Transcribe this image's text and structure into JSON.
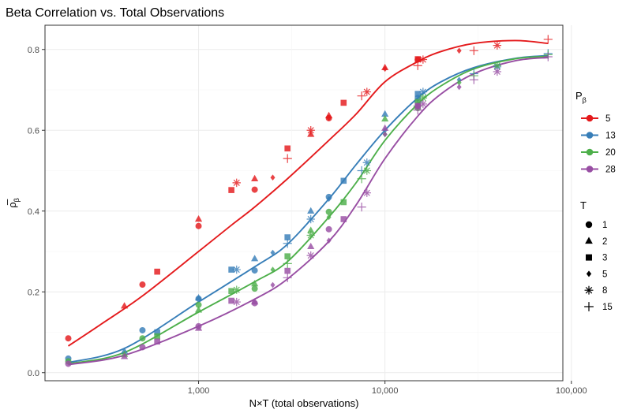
{
  "chart_data": {
    "type": "scatter",
    "title": "Beta Correlation vs. Total Observations",
    "xlabel": "N×T (total observations)",
    "ylabel_main": "ρ̅",
    "ylabel_sub": "β",
    "x_scale": "log10",
    "xlim": [
      150,
      90000
    ],
    "ylim": [
      -0.02,
      0.86
    ],
    "x_ticks": [
      1000,
      10000,
      100000
    ],
    "x_tick_labels": [
      "1,000",
      "10,000",
      "100,000"
    ],
    "y_ticks": [
      0.0,
      0.2,
      0.4,
      0.6,
      0.8
    ],
    "y_tick_labels": [
      "0.0",
      "0.2",
      "0.4",
      "0.6",
      "0.8"
    ],
    "grid": true,
    "legend_color": {
      "title_main": "P",
      "title_sub": "β",
      "placement": "right",
      "entries": [
        {
          "label": "5",
          "color": "#e41a1c"
        },
        {
          "label": "13",
          "color": "#377eb8"
        },
        {
          "label": "20",
          "color": "#4daf4a"
        },
        {
          "label": "28",
          "color": "#984ea3"
        }
      ]
    },
    "legend_shape": {
      "title": "T",
      "placement": "right",
      "entries": [
        {
          "label": "1",
          "shape": "circle"
        },
        {
          "label": "2",
          "shape": "triangle"
        },
        {
          "label": "3",
          "shape": "square"
        },
        {
          "label": "5",
          "shape": "diamond"
        },
        {
          "label": "8",
          "shape": "asterisk"
        },
        {
          "label": "15",
          "shape": "plus"
        }
      ]
    },
    "series": [
      {
        "name": "5",
        "color": "#e41a1c",
        "curve": [
          [
            200,
            0.066
          ],
          [
            300,
            0.12
          ],
          [
            500,
            0.19
          ],
          [
            1000,
            0.3
          ],
          [
            1500,
            0.365
          ],
          [
            2000,
            0.41
          ],
          [
            3000,
            0.48
          ],
          [
            5000,
            0.575
          ],
          [
            7000,
            0.64
          ],
          [
            10000,
            0.72
          ],
          [
            15000,
            0.77
          ],
          [
            20000,
            0.795
          ],
          [
            30000,
            0.815
          ],
          [
            50000,
            0.822
          ],
          [
            75000,
            0.815
          ]
        ],
        "points": [
          {
            "x": 200,
            "y": 0.085,
            "t": "1"
          },
          {
            "x": 500,
            "y": 0.218,
            "t": "1"
          },
          {
            "x": 1000,
            "y": 0.363,
            "t": "1"
          },
          {
            "x": 2000,
            "y": 0.453,
            "t": "1"
          },
          {
            "x": 5000,
            "y": 0.63,
            "t": "1"
          },
          {
            "x": 15000,
            "y": 0.775,
            "t": "1"
          },
          {
            "x": 400,
            "y": 0.165,
            "t": "2"
          },
          {
            "x": 1000,
            "y": 0.38,
            "t": "2"
          },
          {
            "x": 2000,
            "y": 0.48,
            "t": "2"
          },
          {
            "x": 4000,
            "y": 0.59,
            "t": "2"
          },
          {
            "x": 5000,
            "y": 0.636,
            "t": "2"
          },
          {
            "x": 10000,
            "y": 0.755,
            "t": "2"
          },
          {
            "x": 600,
            "y": 0.25,
            "t": "3"
          },
          {
            "x": 1500,
            "y": 0.452,
            "t": "3"
          },
          {
            "x": 3000,
            "y": 0.555,
            "t": "3"
          },
          {
            "x": 6000,
            "y": 0.668,
            "t": "3"
          },
          {
            "x": 15000,
            "y": 0.776,
            "t": "3"
          },
          {
            "x": 2500,
            "y": 0.483,
            "t": "5"
          },
          {
            "x": 5000,
            "y": 0.63,
            "t": "5"
          },
          {
            "x": 10000,
            "y": 0.752,
            "t": "5"
          },
          {
            "x": 25000,
            "y": 0.797,
            "t": "5"
          },
          {
            "x": 1600,
            "y": 0.47,
            "t": "8"
          },
          {
            "x": 4000,
            "y": 0.6,
            "t": "8"
          },
          {
            "x": 8000,
            "y": 0.695,
            "t": "8"
          },
          {
            "x": 16000,
            "y": 0.775,
            "t": "8"
          },
          {
            "x": 40000,
            "y": 0.81,
            "t": "8"
          },
          {
            "x": 3000,
            "y": 0.53,
            "t": "15"
          },
          {
            "x": 7500,
            "y": 0.685,
            "t": "15"
          },
          {
            "x": 15000,
            "y": 0.76,
            "t": "15"
          },
          {
            "x": 30000,
            "y": 0.797,
            "t": "15"
          },
          {
            "x": 75000,
            "y": 0.825,
            "t": "15"
          }
        ]
      },
      {
        "name": "13",
        "color": "#377eb8",
        "curve": [
          [
            200,
            0.025
          ],
          [
            400,
            0.06
          ],
          [
            1000,
            0.175
          ],
          [
            2000,
            0.262
          ],
          [
            3000,
            0.318
          ],
          [
            5000,
            0.43
          ],
          [
            7000,
            0.515
          ],
          [
            10000,
            0.6
          ],
          [
            15000,
            0.68
          ],
          [
            20000,
            0.72
          ],
          [
            30000,
            0.755
          ],
          [
            50000,
            0.778
          ],
          [
            75000,
            0.785
          ]
        ],
        "points": [
          {
            "x": 200,
            "y": 0.035,
            "t": "1"
          },
          {
            "x": 500,
            "y": 0.105,
            "t": "1"
          },
          {
            "x": 1000,
            "y": 0.183,
            "t": "1"
          },
          {
            "x": 2000,
            "y": 0.253,
            "t": "1"
          },
          {
            "x": 5000,
            "y": 0.435,
            "t": "1"
          },
          {
            "x": 15000,
            "y": 0.68,
            "t": "1"
          },
          {
            "x": 400,
            "y": 0.053,
            "t": "2"
          },
          {
            "x": 1000,
            "y": 0.185,
            "t": "2"
          },
          {
            "x": 2000,
            "y": 0.282,
            "t": "2"
          },
          {
            "x": 4000,
            "y": 0.4,
            "t": "2"
          },
          {
            "x": 10000,
            "y": 0.64,
            "t": "2"
          },
          {
            "x": 600,
            "y": 0.1,
            "t": "3"
          },
          {
            "x": 1500,
            "y": 0.255,
            "t": "3"
          },
          {
            "x": 3000,
            "y": 0.335,
            "t": "3"
          },
          {
            "x": 6000,
            "y": 0.475,
            "t": "3"
          },
          {
            "x": 15000,
            "y": 0.69,
            "t": "3"
          },
          {
            "x": 2500,
            "y": 0.297,
            "t": "5"
          },
          {
            "x": 5000,
            "y": 0.43,
            "t": "5"
          },
          {
            "x": 10000,
            "y": 0.6,
            "t": "5"
          },
          {
            "x": 25000,
            "y": 0.725,
            "t": "5"
          },
          {
            "x": 1600,
            "y": 0.255,
            "t": "8"
          },
          {
            "x": 4000,
            "y": 0.38,
            "t": "8"
          },
          {
            "x": 8000,
            "y": 0.52,
            "t": "8"
          },
          {
            "x": 16000,
            "y": 0.695,
            "t": "8"
          },
          {
            "x": 40000,
            "y": 0.757,
            "t": "8"
          },
          {
            "x": 3000,
            "y": 0.32,
            "t": "15"
          },
          {
            "x": 7500,
            "y": 0.5,
            "t": "15"
          },
          {
            "x": 15000,
            "y": 0.67,
            "t": "15"
          },
          {
            "x": 30000,
            "y": 0.74,
            "t": "15"
          },
          {
            "x": 75000,
            "y": 0.79,
            "t": "15"
          }
        ]
      },
      {
        "name": "20",
        "color": "#4daf4a",
        "curve": [
          [
            200,
            0.022
          ],
          [
            400,
            0.05
          ],
          [
            1000,
            0.15
          ],
          [
            2000,
            0.225
          ],
          [
            3000,
            0.275
          ],
          [
            5000,
            0.385
          ],
          [
            7000,
            0.47
          ],
          [
            10000,
            0.575
          ],
          [
            15000,
            0.665
          ],
          [
            20000,
            0.71
          ],
          [
            30000,
            0.752
          ],
          [
            50000,
            0.777
          ],
          [
            75000,
            0.783
          ]
        ],
        "points": [
          {
            "x": 200,
            "y": 0.028,
            "t": "1"
          },
          {
            "x": 500,
            "y": 0.085,
            "t": "1"
          },
          {
            "x": 1000,
            "y": 0.168,
            "t": "1"
          },
          {
            "x": 2000,
            "y": 0.208,
            "t": "1"
          },
          {
            "x": 5000,
            "y": 0.398,
            "t": "1"
          },
          {
            "x": 15000,
            "y": 0.655,
            "t": "1"
          },
          {
            "x": 400,
            "y": 0.045,
            "t": "2"
          },
          {
            "x": 1000,
            "y": 0.155,
            "t": "2"
          },
          {
            "x": 2000,
            "y": 0.22,
            "t": "2"
          },
          {
            "x": 4000,
            "y": 0.352,
            "t": "2"
          },
          {
            "x": 10000,
            "y": 0.628,
            "t": "2"
          },
          {
            "x": 600,
            "y": 0.09,
            "t": "3"
          },
          {
            "x": 1500,
            "y": 0.202,
            "t": "3"
          },
          {
            "x": 3000,
            "y": 0.288,
            "t": "3"
          },
          {
            "x": 6000,
            "y": 0.422,
            "t": "3"
          },
          {
            "x": 15000,
            "y": 0.67,
            "t": "3"
          },
          {
            "x": 2500,
            "y": 0.255,
            "t": "5"
          },
          {
            "x": 5000,
            "y": 0.385,
            "t": "5"
          },
          {
            "x": 10000,
            "y": 0.59,
            "t": "5"
          },
          {
            "x": 25000,
            "y": 0.718,
            "t": "5"
          },
          {
            "x": 1600,
            "y": 0.205,
            "t": "8"
          },
          {
            "x": 4000,
            "y": 0.34,
            "t": "8"
          },
          {
            "x": 8000,
            "y": 0.5,
            "t": "8"
          },
          {
            "x": 16000,
            "y": 0.68,
            "t": "8"
          },
          {
            "x": 40000,
            "y": 0.76,
            "t": "8"
          },
          {
            "x": 3000,
            "y": 0.27,
            "t": "15"
          },
          {
            "x": 7500,
            "y": 0.48,
            "t": "15"
          },
          {
            "x": 15000,
            "y": 0.66,
            "t": "15"
          },
          {
            "x": 30000,
            "y": 0.735,
            "t": "15"
          },
          {
            "x": 75000,
            "y": 0.787,
            "t": "15"
          }
        ]
      },
      {
        "name": "28",
        "color": "#984ea3",
        "curve": [
          [
            200,
            0.02
          ],
          [
            400,
            0.043
          ],
          [
            1000,
            0.115
          ],
          [
            2000,
            0.182
          ],
          [
            3000,
            0.232
          ],
          [
            5000,
            0.325
          ],
          [
            7000,
            0.415
          ],
          [
            10000,
            0.53
          ],
          [
            15000,
            0.635
          ],
          [
            20000,
            0.69
          ],
          [
            30000,
            0.74
          ],
          [
            50000,
            0.772
          ],
          [
            75000,
            0.78
          ]
        ],
        "points": [
          {
            "x": 200,
            "y": 0.022,
            "t": "1"
          },
          {
            "x": 500,
            "y": 0.063,
            "t": "1"
          },
          {
            "x": 1000,
            "y": 0.115,
            "t": "1"
          },
          {
            "x": 2000,
            "y": 0.172,
            "t": "1"
          },
          {
            "x": 5000,
            "y": 0.355,
            "t": "1"
          },
          {
            "x": 15000,
            "y": 0.66,
            "t": "1"
          },
          {
            "x": 400,
            "y": 0.04,
            "t": "2"
          },
          {
            "x": 1000,
            "y": 0.11,
            "t": "2"
          },
          {
            "x": 2000,
            "y": 0.175,
            "t": "2"
          },
          {
            "x": 4000,
            "y": 0.312,
            "t": "2"
          },
          {
            "x": 10000,
            "y": 0.605,
            "t": "2"
          },
          {
            "x": 600,
            "y": 0.077,
            "t": "3"
          },
          {
            "x": 1500,
            "y": 0.178,
            "t": "3"
          },
          {
            "x": 3000,
            "y": 0.252,
            "t": "3"
          },
          {
            "x": 6000,
            "y": 0.38,
            "t": "3"
          },
          {
            "x": 15000,
            "y": 0.66,
            "t": "3"
          },
          {
            "x": 2500,
            "y": 0.217,
            "t": "5"
          },
          {
            "x": 5000,
            "y": 0.327,
            "t": "5"
          },
          {
            "x": 10000,
            "y": 0.59,
            "t": "5"
          },
          {
            "x": 25000,
            "y": 0.707,
            "t": "5"
          },
          {
            "x": 1600,
            "y": 0.175,
            "t": "8"
          },
          {
            "x": 4000,
            "y": 0.29,
            "t": "8"
          },
          {
            "x": 8000,
            "y": 0.445,
            "t": "8"
          },
          {
            "x": 16000,
            "y": 0.665,
            "t": "8"
          },
          {
            "x": 40000,
            "y": 0.745,
            "t": "8"
          },
          {
            "x": 3000,
            "y": 0.235,
            "t": "15"
          },
          {
            "x": 7500,
            "y": 0.41,
            "t": "15"
          },
          {
            "x": 15000,
            "y": 0.65,
            "t": "15"
          },
          {
            "x": 30000,
            "y": 0.725,
            "t": "15"
          },
          {
            "x": 75000,
            "y": 0.782,
            "t": "15"
          }
        ]
      }
    ]
  }
}
